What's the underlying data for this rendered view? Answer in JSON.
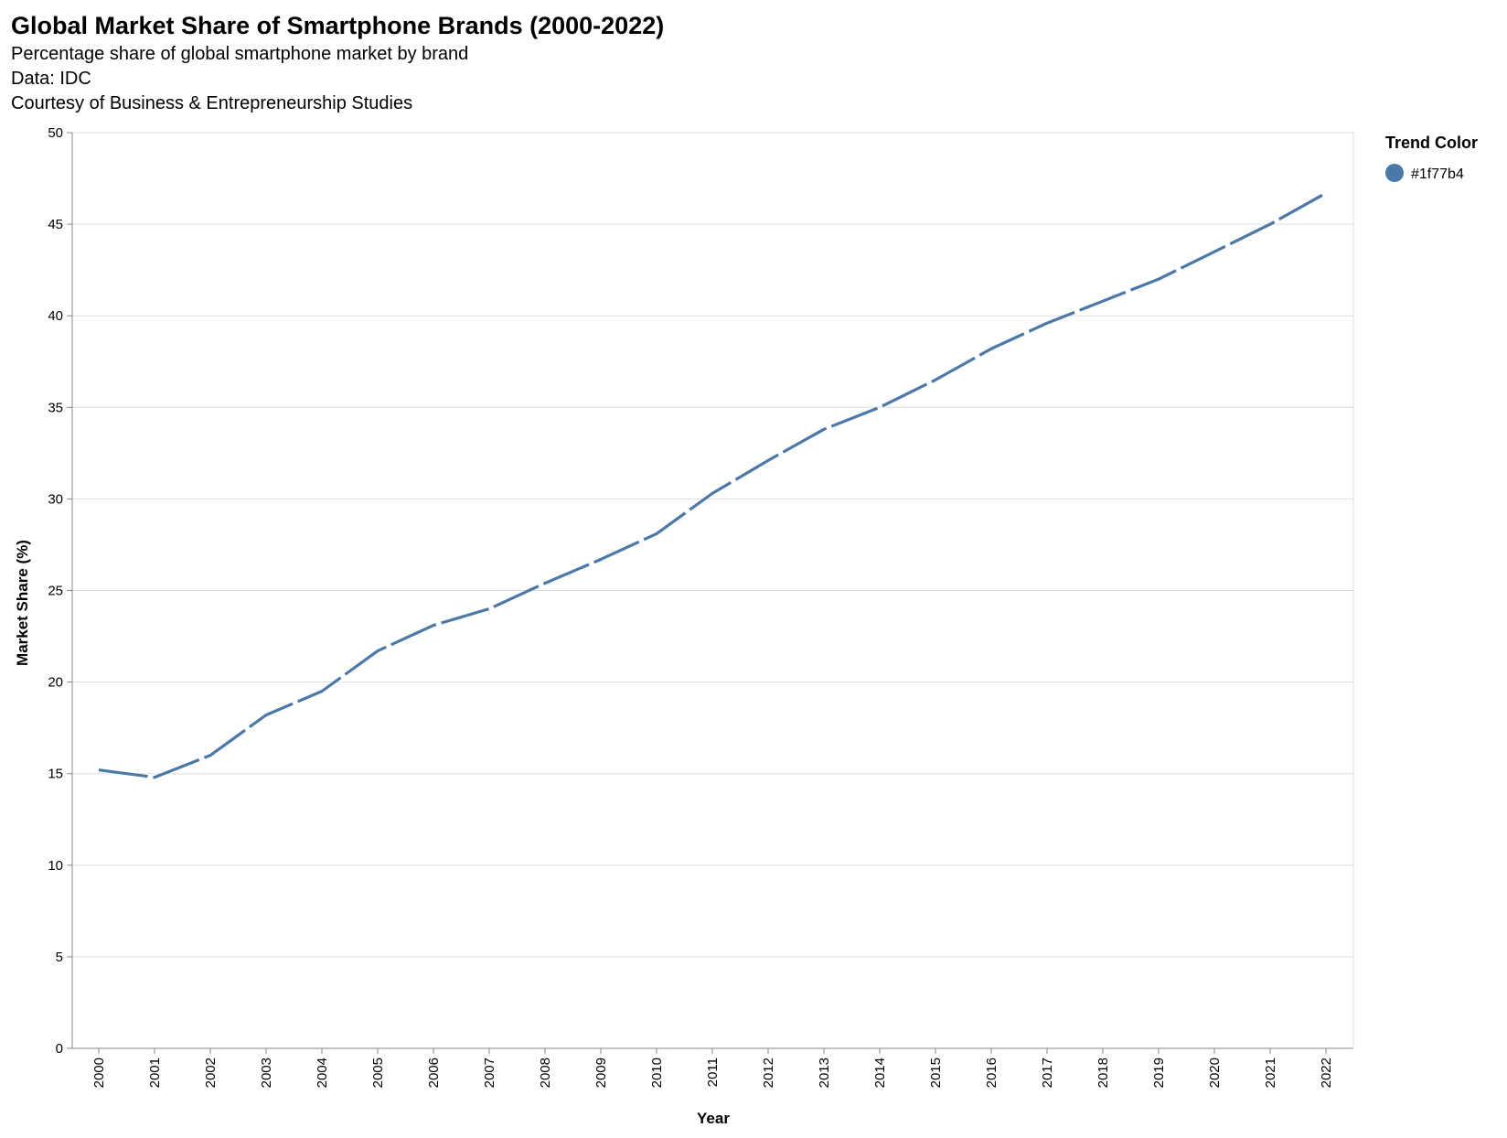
{
  "chart_data": {
    "type": "line",
    "title": "Global Market Share of Smartphone Brands (2000-2022)",
    "subtitle": [
      "Percentage share of global smartphone market by brand",
      "Data: IDC",
      "Courtesy of Business & Entrepreneurship Studies"
    ],
    "xlabel": "Year",
    "ylabel": "Market Share (%)",
    "ylim": [
      0,
      50
    ],
    "yticks": [
      0,
      5,
      10,
      15,
      20,
      25,
      30,
      35,
      40,
      45,
      50
    ],
    "categories": [
      "2000",
      "2001",
      "2002",
      "2003",
      "2004",
      "2005",
      "2006",
      "2007",
      "2008",
      "2009",
      "2010",
      "2011",
      "2012",
      "2013",
      "2014",
      "2015",
      "2016",
      "2017",
      "2018",
      "2019",
      "2020",
      "2021",
      "2022"
    ],
    "series": [
      {
        "name": "#1f77b4",
        "color": "#4c78a8",
        "values": [
          15.2,
          14.8,
          16.0,
          18.2,
          19.5,
          21.7,
          23.1,
          24.0,
          25.4,
          26.7,
          28.1,
          30.3,
          32.1,
          33.8,
          35.0,
          36.5,
          38.2,
          39.6,
          40.8,
          42.0,
          43.5,
          45.0,
          46.7
        ]
      }
    ],
    "grid": true,
    "line_style": "dashed",
    "legend": {
      "title": "Trend Color",
      "placement": "top-right",
      "entries": [
        "#1f77b4"
      ]
    }
  }
}
